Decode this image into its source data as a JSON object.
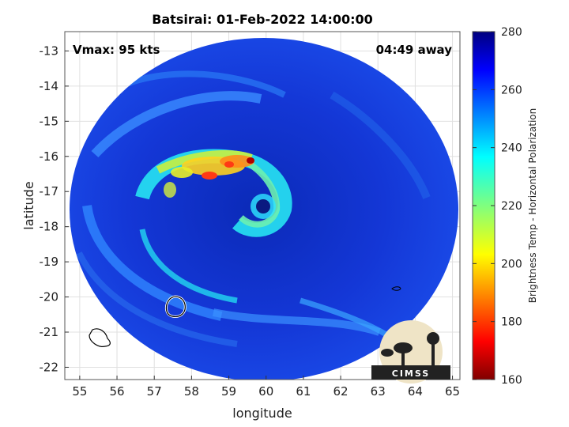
{
  "chart_data": {
    "type": "heatmap",
    "title": "Batsirai: 01-Feb-2022 14:00:00",
    "xlabel": "longitude",
    "ylabel": "latitude",
    "xlim": [
      54.6,
      65.2
    ],
    "ylim": [
      -22.35,
      -12.45
    ],
    "xticks": [
      55,
      56,
      57,
      58,
      59,
      60,
      61,
      62,
      63,
      64,
      65
    ],
    "yticks": [
      -13,
      -14,
      -15,
      -16,
      -17,
      -18,
      -19,
      -20,
      -21,
      -22
    ],
    "grid": true,
    "annotations": {
      "left": "Vmax: 95 kts",
      "right": "04:49 away"
    },
    "storm_center": {
      "lon": 59.85,
      "lat": -17.35
    },
    "colorbar": {
      "label": "Brightness Temp - Horizontal Polarization",
      "range": [
        160,
        280
      ],
      "ticks": [
        280,
        260,
        240,
        220,
        200,
        180,
        160
      ],
      "colormap": "jet"
    },
    "colors": {
      "background_swath": "#1438d8",
      "cold_core": "#8b0000",
      "eye": "#0a1a80"
    }
  },
  "logo": {
    "text": "CIMSS"
  }
}
